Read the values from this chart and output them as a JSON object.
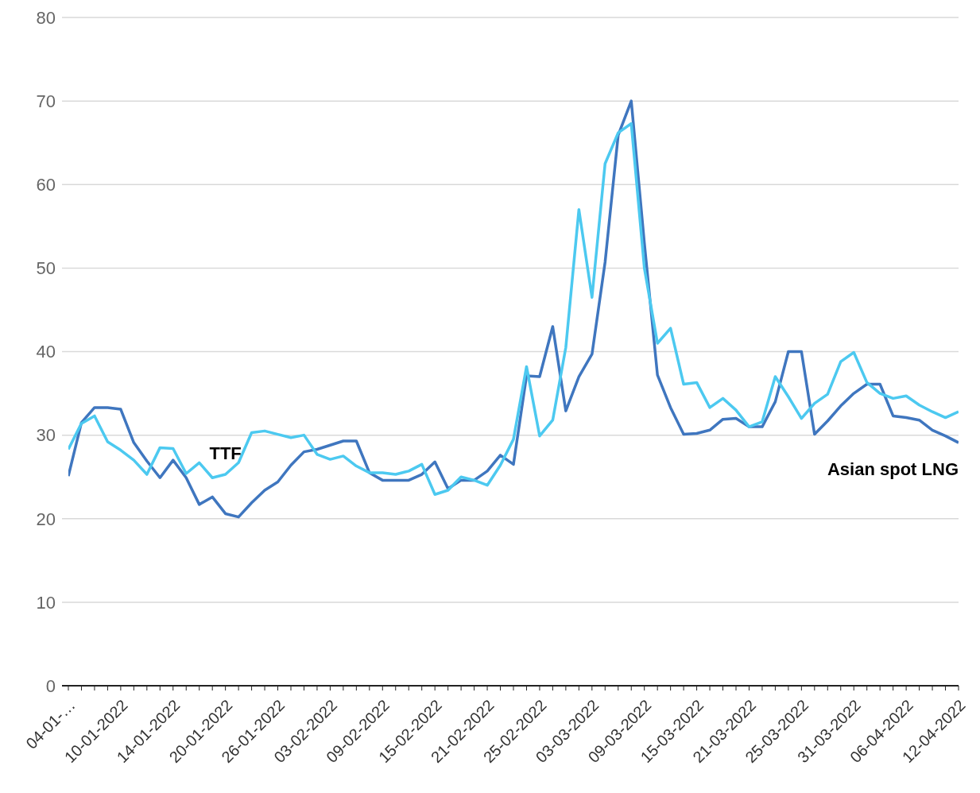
{
  "chart_data": {
    "type": "line",
    "categories": [
      "04-01-…",
      null,
      null,
      null,
      "10-01-2022",
      null,
      null,
      null,
      "14-01-2022",
      null,
      null,
      null,
      "20-01-2022",
      null,
      null,
      null,
      "26-01-2022",
      null,
      null,
      null,
      "03-02-2022",
      null,
      null,
      null,
      "09-02-2022",
      null,
      null,
      null,
      "15-02-2022",
      null,
      null,
      null,
      "21-02-2022",
      null,
      null,
      null,
      "25-02-2022",
      null,
      null,
      null,
      "03-03-2022",
      null,
      null,
      null,
      "09-03-2022",
      null,
      null,
      null,
      "15-03-2022",
      null,
      null,
      null,
      "21-03-2022",
      null,
      null,
      null,
      "25-03-2022",
      null,
      null,
      null,
      "31-03-2022",
      null,
      null,
      null,
      "06-04-2022",
      null,
      null,
      null,
      "12-04-2022"
    ],
    "series": [
      {
        "name": "Asian spot LNG",
        "color": "#3f76bf",
        "values": [
          25.1,
          31.5,
          33.3,
          33.3,
          33.1,
          29.1,
          26.9,
          24.9,
          27.0,
          24.9,
          21.7,
          22.6,
          20.6,
          20.2,
          21.9,
          23.4,
          24.4,
          26.4,
          28.0,
          28.3,
          28.8,
          29.3,
          29.3,
          25.5,
          24.6,
          24.6,
          24.6,
          25.3,
          26.8,
          23.6,
          24.6,
          24.6,
          25.7,
          27.6,
          26.5,
          37.1,
          37.0,
          43.0,
          32.9,
          37.0,
          39.7,
          50.7,
          65.9,
          70.0,
          53.0,
          37.2,
          33.3,
          30.1,
          30.2,
          30.6,
          31.9,
          32.0,
          31.0,
          31.0,
          34.0,
          40.0,
          40.0,
          30.1,
          31.7,
          33.5,
          35.0,
          36.1,
          36.1,
          32.3,
          32.1,
          31.8,
          30.6,
          29.9,
          29.1
        ]
      },
      {
        "name": "TTF",
        "color": "#4cc9f0",
        "values": [
          28.3,
          31.4,
          32.3,
          29.2,
          28.2,
          27.0,
          25.3,
          28.5,
          28.4,
          25.4,
          26.7,
          24.9,
          25.3,
          26.7,
          30.3,
          30.5,
          30.1,
          29.7,
          30.0,
          27.7,
          27.1,
          27.5,
          26.3,
          25.5,
          25.5,
          25.3,
          25.7,
          26.5,
          22.9,
          23.4,
          25.0,
          24.6,
          24.0,
          26.4,
          29.5,
          38.2,
          29.9,
          31.8,
          40.5,
          57.0,
          46.5,
          62.5,
          66.2,
          67.3,
          50.0,
          41.0,
          42.8,
          36.1,
          36.3,
          33.3,
          34.4,
          33.0,
          31.0,
          31.6,
          37.0,
          34.6,
          32.0,
          33.8,
          34.9,
          38.8,
          39.9,
          36.3,
          35.0,
          34.4,
          34.7,
          33.6,
          32.8,
          32.1,
          32.8
        ]
      }
    ],
    "ylim": [
      0,
      80
    ],
    "yticks": [
      0,
      10,
      20,
      30,
      40,
      50,
      60,
      70,
      80
    ],
    "grid": "y",
    "legend": false,
    "marker": "none",
    "line_style": "solid"
  }
}
